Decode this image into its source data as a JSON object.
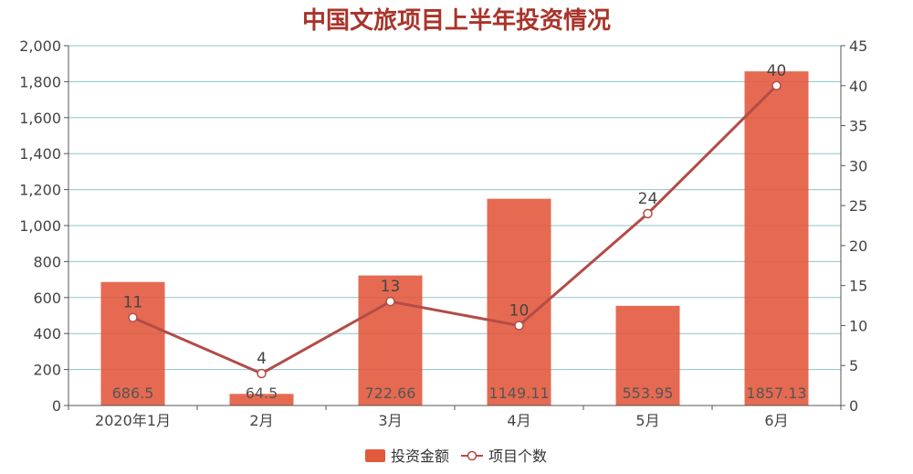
{
  "chart_data": {
    "type": "bar",
    "title": "中国文旅项目上半年投资情况",
    "categories": [
      "2020年1月",
      "2月",
      "3月",
      "4月",
      "5月",
      "6月"
    ],
    "series": [
      {
        "name": "投资金额",
        "type": "bar",
        "axis": "left",
        "values": [
          686.5,
          64.5,
          722.66,
          1149.11,
          553.95,
          1857.13
        ],
        "color": "#e25a3e"
      },
      {
        "name": "项目个数",
        "type": "line",
        "axis": "right",
        "values": [
          11,
          4,
          13,
          10,
          24,
          40
        ],
        "color": "#b34c47"
      }
    ],
    "y_left": {
      "min": 0,
      "max": 2000,
      "step": 200,
      "tick_labels": [
        "0",
        "200",
        "400",
        "600",
        "800",
        "1,000",
        "1,200",
        "1,400",
        "1,600",
        "1,800",
        "2,000"
      ]
    },
    "y_right": {
      "min": 0,
      "max": 45,
      "step": 5,
      "tick_labels": [
        "0",
        "5",
        "10",
        "15",
        "20",
        "25",
        "30",
        "35",
        "40",
        "45"
      ]
    },
    "bar_labels": [
      "686.5",
      "64.5",
      "722.66",
      "1149.11",
      "553.95",
      "1857.13"
    ],
    "point_labels": [
      "11",
      "4",
      "13",
      "10",
      "24",
      "40"
    ],
    "grid": true,
    "legend_position": "bottom-center",
    "colors": {
      "title": "#a8342a",
      "grid": "#8fc3c8",
      "bar": "#e25a3e",
      "line": "#b34c47"
    }
  }
}
